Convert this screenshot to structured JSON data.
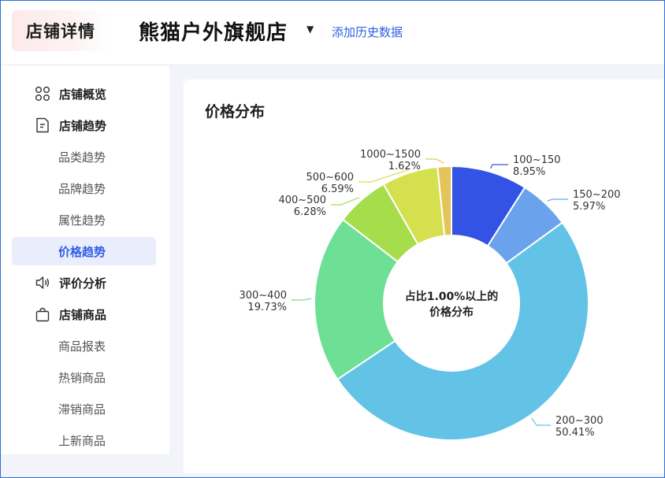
{
  "header": {
    "brand": "店铺详情",
    "store_name": "熊猫户外旗舰店",
    "add_history": "添加历史数据"
  },
  "sidebar": {
    "items": [
      {
        "label": "店铺概览",
        "type": "group",
        "icon": "grid-icon"
      },
      {
        "label": "店铺趋势",
        "type": "group",
        "icon": "document-icon"
      },
      {
        "label": "品类趋势",
        "type": "sub"
      },
      {
        "label": "品牌趋势",
        "type": "sub"
      },
      {
        "label": "属性趋势",
        "type": "sub"
      },
      {
        "label": "价格趋势",
        "type": "sub",
        "active": true
      },
      {
        "label": "评价分析",
        "type": "group",
        "icon": "speaker-icon"
      },
      {
        "label": "店铺商品",
        "type": "group",
        "icon": "bag-icon"
      },
      {
        "label": "商品报表",
        "type": "sub"
      },
      {
        "label": "热销商品",
        "type": "sub"
      },
      {
        "label": "滞销商品",
        "type": "sub"
      },
      {
        "label": "上新商品",
        "type": "sub"
      }
    ]
  },
  "card": {
    "title": "价格分布"
  },
  "chart_data": {
    "type": "pie",
    "center_label_line1": "占比1.00%以上的",
    "center_label_line2": "价格分布",
    "slices": [
      {
        "name": "100~150",
        "value": 8.95,
        "percent_label": "8.95%",
        "color": "#3253e3"
      },
      {
        "name": "150~200",
        "value": 5.97,
        "percent_label": "5.97%",
        "color": "#6aa3eb"
      },
      {
        "name": "200~300",
        "value": 50.41,
        "percent_label": "50.41%",
        "color": "#62c3e7"
      },
      {
        "name": "300~400",
        "value": 19.73,
        "percent_label": "19.73%",
        "color": "#6ee095"
      },
      {
        "name": "400~500",
        "value": 6.28,
        "percent_label": "6.28%",
        "color": "#a6dd4b"
      },
      {
        "name": "500~600",
        "value": 6.59,
        "percent_label": "6.59%",
        "color": "#d4e04d"
      },
      {
        "name": "1000~1500",
        "value": 1.62,
        "percent_label": "1.62%",
        "color": "#e3c45a"
      }
    ]
  }
}
